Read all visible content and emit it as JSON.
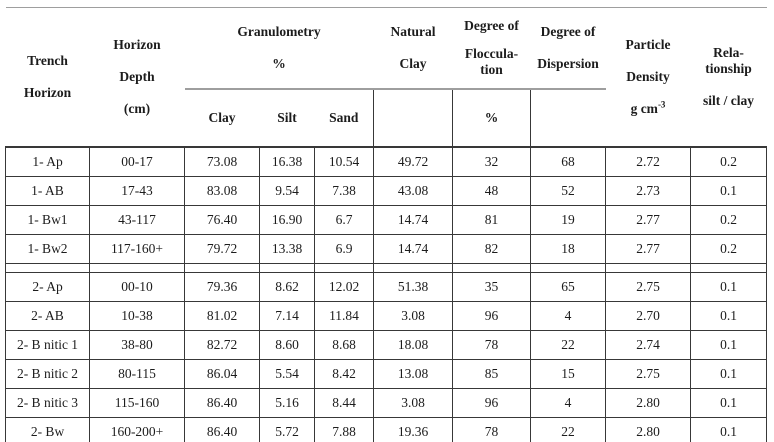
{
  "header": {
    "trench_horizon_lines": [
      "Trench",
      "Horizon"
    ],
    "horizon_depth_lines": [
      "Horizon",
      "Depth",
      "(cm)"
    ],
    "granulometry_lines": [
      "Granulometry",
      "%"
    ],
    "granulometry_sub": [
      "Clay",
      "Silt",
      "Sand"
    ],
    "natural_clay_lines": [
      "Natural",
      "Clay"
    ],
    "flocculation_lines": [
      "Degree of",
      "Floccula-",
      "tion"
    ],
    "flocculation_unit": "%",
    "dispersion_lines": [
      "Degree of",
      "Dispersion"
    ],
    "particle_density_lines": [
      "Particle",
      "Density"
    ],
    "particle_density_unit_base": "g cm",
    "particle_density_unit_sup": "-3",
    "relationship_lines": [
      "Rela-",
      "tionship"
    ],
    "relationship_unit": "silt / clay"
  },
  "row_groups": [
    [
      {
        "horizon": "1- Ap",
        "depth": "00-17",
        "clay": "73.08",
        "silt": "16.38",
        "sand": "10.54",
        "natural_clay": "49.72",
        "flocculation": "32",
        "dispersion": "68",
        "density": "2.72",
        "silt_clay": "0.2"
      },
      {
        "horizon": "1- AB",
        "depth": "17-43",
        "clay": "83.08",
        "silt": "9.54",
        "sand": "7.38",
        "natural_clay": "43.08",
        "flocculation": "48",
        "dispersion": "52",
        "density": "2.73",
        "silt_clay": "0.1"
      },
      {
        "horizon": "1- Bw1",
        "depth": "43-117",
        "clay": "76.40",
        "silt": "16.90",
        "sand": "6.7",
        "natural_clay": "14.74",
        "flocculation": "81",
        "dispersion": "19",
        "density": "2.77",
        "silt_clay": "0.2"
      },
      {
        "horizon": "1- Bw2",
        "depth": "117-160+",
        "clay": "79.72",
        "silt": "13.38",
        "sand": "6.9",
        "natural_clay": "14.74",
        "flocculation": "82",
        "dispersion": "18",
        "density": "2.77",
        "silt_clay": "0.2"
      }
    ],
    [
      {
        "horizon": "2- Ap",
        "depth": "00-10",
        "clay": "79.36",
        "silt": "8.62",
        "sand": "12.02",
        "natural_clay": "51.38",
        "flocculation": "35",
        "dispersion": "65",
        "density": "2.75",
        "silt_clay": "0.1"
      },
      {
        "horizon": "2- AB",
        "depth": "10-38",
        "clay": "81.02",
        "silt": "7.14",
        "sand": "11.84",
        "natural_clay": "3.08",
        "flocculation": "96",
        "dispersion": "4",
        "density": "2.70",
        "silt_clay": "0.1"
      },
      {
        "horizon": "2- B nitic 1",
        "depth": "38-80",
        "clay": "82.72",
        "silt": "8.60",
        "sand": "8.68",
        "natural_clay": "18.08",
        "flocculation": "78",
        "dispersion": "22",
        "density": "2.74",
        "silt_clay": "0.1"
      },
      {
        "horizon": "2- B nitic 2",
        "depth": "80-115",
        "clay": "86.04",
        "silt": "5.54",
        "sand": "8.42",
        "natural_clay": "13.08",
        "flocculation": "85",
        "dispersion": "15",
        "density": "2.75",
        "silt_clay": "0.1"
      },
      {
        "horizon": "2- B nitic 3",
        "depth": "115-160",
        "clay": "86.40",
        "silt": "5.16",
        "sand": "8.44",
        "natural_clay": "3.08",
        "flocculation": "96",
        "dispersion": "4",
        "density": "2.80",
        "silt_clay": "0.1"
      },
      {
        "horizon": "2- Bw",
        "depth": "160-200+",
        "clay": "86.40",
        "silt": "5.72",
        "sand": "7.88",
        "natural_clay": "19.36",
        "flocculation": "78",
        "dispersion": "22",
        "density": "2.80",
        "silt_clay": "0.1"
      }
    ]
  ]
}
